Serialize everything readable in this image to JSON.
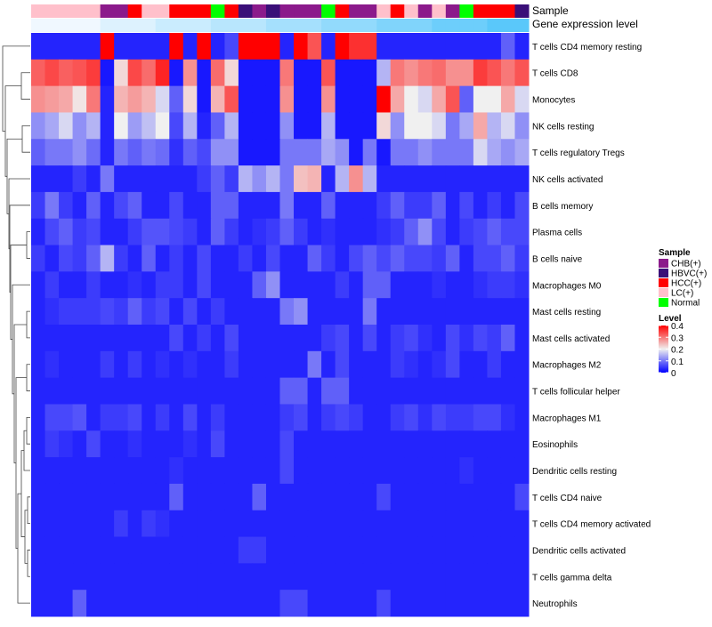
{
  "chart_data": {
    "type": "heatmap",
    "annotation_titles": {
      "sample": "Sample",
      "gene_level": "Gene expression level"
    },
    "rows": [
      "T cells CD4 memory resting",
      "T cells CD8",
      "Monocytes",
      "NK cells resting",
      "T cells regulatory  Tregs",
      "NK cells activated",
      "B cells memory",
      "Plasma cells",
      "B cells naive",
      "Macrophages M0",
      "Mast cells resting",
      "Mast cells activated",
      "Macrophages M2",
      "T cells follicular helper",
      "Macrophages M1",
      "Eosinophils",
      "Dendritic cells resting",
      "T cells CD4 naive",
      "T cells CD4 memory activated",
      "Dendritic cells activated",
      "T cells gamma delta",
      "Neutrophils"
    ],
    "sample_groups": [
      "LC(+)",
      "LC(+)",
      "LC(+)",
      "LC(+)",
      "LC(+)",
      "CHB(+)",
      "CHB(+)",
      "HCC(+)",
      "LC(+)",
      "LC(+)",
      "HCC(+)",
      "HCC(+)",
      "HCC(+)",
      "Normal",
      "HCC(+)",
      "HBVC(+)",
      "CHB(+)",
      "HBVC(+)",
      "CHB(+)",
      "CHB(+)",
      "CHB(+)",
      "Normal",
      "HCC(+)",
      "CHB(+)",
      "CHB(+)",
      "LC(+)",
      "HCC(+)",
      "LC(+)",
      "CHB(+)",
      "LC(+)",
      "CHB(+)",
      "Normal",
      "HCC(+)",
      "HCC(+)",
      "HCC(+)",
      "HBVC(+)"
    ],
    "gene_level": [
      0.32,
      0.32,
      0.32,
      0.32,
      0.32,
      0.33,
      0.33,
      0.33,
      0.33,
      0.34,
      0.34,
      0.34,
      0.34,
      0.35,
      0.35,
      0.35,
      0.35,
      0.36,
      0.36,
      0.36,
      0.36,
      0.37,
      0.37,
      0.37,
      0.37,
      0.38,
      0.38,
      0.38,
      0.38,
      0.39,
      0.39,
      0.39,
      0.39,
      0.4,
      0.4,
      0.4
    ],
    "values": [
      [
        0.03,
        0.03,
        0.03,
        0.03,
        0.03,
        0.4,
        0.03,
        0.03,
        0.03,
        0.03,
        0.4,
        0.03,
        0.4,
        0.03,
        0.06,
        0.4,
        0.4,
        0.4,
        0.03,
        0.4,
        0.33,
        0.03,
        0.4,
        0.36,
        0.36,
        0.03,
        0.03,
        0.03,
        0.03,
        0.03,
        0.03,
        0.03,
        0.03,
        0.03,
        0.08,
        0.03
      ],
      [
        0.32,
        0.34,
        0.32,
        0.33,
        0.35,
        0.02,
        0.22,
        0.34,
        0.31,
        0.37,
        0.02,
        0.28,
        0.02,
        0.31,
        0.22,
        0.02,
        0.02,
        0.02,
        0.3,
        0.02,
        0.02,
        0.33,
        0.02,
        0.02,
        0.02,
        0.15,
        0.3,
        0.28,
        0.3,
        0.31,
        0.28,
        0.28,
        0.35,
        0.33,
        0.3,
        0.33
      ],
      [
        0.28,
        0.27,
        0.26,
        0.21,
        0.3,
        0.03,
        0.25,
        0.27,
        0.25,
        0.18,
        0.08,
        0.22,
        0.02,
        0.25,
        0.33,
        0.02,
        0.02,
        0.02,
        0.28,
        0.02,
        0.02,
        0.28,
        0.02,
        0.02,
        0.02,
        0.4,
        0.26,
        0.2,
        0.18,
        0.26,
        0.33,
        0.08,
        0.2,
        0.2,
        0.26,
        0.18
      ],
      [
        0.12,
        0.14,
        0.18,
        0.12,
        0.15,
        0.03,
        0.2,
        0.13,
        0.16,
        0.2,
        0.06,
        0.15,
        0.03,
        0.08,
        0.15,
        0.02,
        0.02,
        0.02,
        0.12,
        0.02,
        0.02,
        0.15,
        0.02,
        0.02,
        0.02,
        0.22,
        0.12,
        0.2,
        0.2,
        0.18,
        0.1,
        0.14,
        0.26,
        0.15,
        0.18,
        0.12
      ],
      [
        0.08,
        0.1,
        0.1,
        0.12,
        0.09,
        0.03,
        0.1,
        0.08,
        0.1,
        0.09,
        0.04,
        0.08,
        0.06,
        0.12,
        0.12,
        0.02,
        0.02,
        0.02,
        0.1,
        0.1,
        0.1,
        0.14,
        0.12,
        0.02,
        0.1,
        0.02,
        0.1,
        0.1,
        0.12,
        0.1,
        0.1,
        0.1,
        0.18,
        0.14,
        0.12,
        0.14
      ],
      [
        0.03,
        0.03,
        0.03,
        0.05,
        0.03,
        0.1,
        0.03,
        0.03,
        0.03,
        0.03,
        0.03,
        0.03,
        0.05,
        0.08,
        0.05,
        0.15,
        0.12,
        0.15,
        0.1,
        0.24,
        0.25,
        0.03,
        0.15,
        0.28,
        0.15,
        0.03,
        0.03,
        0.03,
        0.03,
        0.03,
        0.03,
        0.03,
        0.03,
        0.03,
        0.03,
        0.03
      ],
      [
        0.05,
        0.1,
        0.05,
        0.03,
        0.08,
        0.03,
        0.06,
        0.08,
        0.03,
        0.03,
        0.06,
        0.03,
        0.03,
        0.08,
        0.08,
        0.03,
        0.03,
        0.03,
        0.1,
        0.03,
        0.03,
        0.08,
        0.03,
        0.03,
        0.03,
        0.05,
        0.08,
        0.05,
        0.05,
        0.08,
        0.03,
        0.06,
        0.03,
        0.05,
        0.03,
        0.06
      ],
      [
        0.03,
        0.06,
        0.08,
        0.05,
        0.06,
        0.03,
        0.03,
        0.05,
        0.07,
        0.07,
        0.06,
        0.05,
        0.03,
        0.08,
        0.05,
        0.03,
        0.04,
        0.05,
        0.08,
        0.05,
        0.03,
        0.04,
        0.03,
        0.03,
        0.03,
        0.04,
        0.05,
        0.08,
        0.12,
        0.06,
        0.03,
        0.05,
        0.06,
        0.08,
        0.06,
        0.06
      ],
      [
        0.05,
        0.03,
        0.06,
        0.05,
        0.08,
        0.15,
        0.05,
        0.03,
        0.08,
        0.03,
        0.05,
        0.03,
        0.06,
        0.03,
        0.03,
        0.05,
        0.03,
        0.06,
        0.03,
        0.03,
        0.08,
        0.05,
        0.03,
        0.06,
        0.08,
        0.06,
        0.08,
        0.06,
        0.06,
        0.05,
        0.08,
        0.03,
        0.06,
        0.06,
        0.08,
        0.05
      ],
      [
        0.03,
        0.05,
        0.03,
        0.03,
        0.05,
        0.03,
        0.03,
        0.04,
        0.03,
        0.05,
        0.05,
        0.03,
        0.06,
        0.03,
        0.03,
        0.03,
        0.08,
        0.12,
        0.03,
        0.03,
        0.03,
        0.03,
        0.05,
        0.03,
        0.08,
        0.08,
        0.03,
        0.03,
        0.03,
        0.04,
        0.03,
        0.03,
        0.04,
        0.05,
        0.05,
        0.04
      ],
      [
        0.03,
        0.04,
        0.05,
        0.05,
        0.05,
        0.06,
        0.05,
        0.08,
        0.05,
        0.06,
        0.03,
        0.06,
        0.03,
        0.05,
        0.03,
        0.03,
        0.03,
        0.03,
        0.1,
        0.12,
        0.03,
        0.03,
        0.03,
        0.03,
        0.1,
        0.03,
        0.03,
        0.03,
        0.03,
        0.03,
        0.03,
        0.03,
        0.03,
        0.03,
        0.03,
        0.03
      ],
      [
        0.03,
        0.03,
        0.03,
        0.03,
        0.03,
        0.03,
        0.03,
        0.03,
        0.03,
        0.03,
        0.06,
        0.03,
        0.05,
        0.03,
        0.06,
        0.03,
        0.03,
        0.03,
        0.03,
        0.03,
        0.03,
        0.05,
        0.06,
        0.03,
        0.06,
        0.03,
        0.05,
        0.06,
        0.04,
        0.03,
        0.06,
        0.04,
        0.06,
        0.05,
        0.08,
        0.03
      ],
      [
        0.03,
        0.04,
        0.03,
        0.03,
        0.03,
        0.05,
        0.03,
        0.05,
        0.03,
        0.04,
        0.03,
        0.04,
        0.03,
        0.03,
        0.05,
        0.03,
        0.03,
        0.03,
        0.03,
        0.03,
        0.1,
        0.03,
        0.06,
        0.03,
        0.03,
        0.03,
        0.05,
        0.04,
        0.03,
        0.04,
        0.06,
        0.03,
        0.03,
        0.05,
        0.03,
        0.03
      ],
      [
        0.03,
        0.03,
        0.03,
        0.03,
        0.03,
        0.03,
        0.03,
        0.03,
        0.03,
        0.03,
        0.03,
        0.03,
        0.03,
        0.03,
        0.03,
        0.03,
        0.03,
        0.03,
        0.08,
        0.08,
        0.03,
        0.08,
        0.08,
        0.03,
        0.03,
        0.03,
        0.03,
        0.03,
        0.03,
        0.03,
        0.03,
        0.03,
        0.03,
        0.03,
        0.03,
        0.03
      ],
      [
        0.03,
        0.06,
        0.06,
        0.07,
        0.03,
        0.05,
        0.05,
        0.06,
        0.03,
        0.05,
        0.03,
        0.06,
        0.03,
        0.05,
        0.03,
        0.03,
        0.03,
        0.03,
        0.05,
        0.06,
        0.03,
        0.05,
        0.06,
        0.05,
        0.03,
        0.03,
        0.05,
        0.06,
        0.04,
        0.06,
        0.05,
        0.05,
        0.06,
        0.06,
        0.04,
        0.03
      ],
      [
        0.03,
        0.05,
        0.04,
        0.03,
        0.06,
        0.03,
        0.03,
        0.04,
        0.03,
        0.03,
        0.03,
        0.04,
        0.03,
        0.06,
        0.03,
        0.03,
        0.03,
        0.03,
        0.06,
        0.03,
        0.03,
        0.03,
        0.03,
        0.03,
        0.03,
        0.03,
        0.03,
        0.03,
        0.03,
        0.03,
        0.03,
        0.03,
        0.03,
        0.03,
        0.03,
        0.03
      ],
      [
        0.03,
        0.03,
        0.03,
        0.03,
        0.03,
        0.03,
        0.03,
        0.03,
        0.03,
        0.03,
        0.04,
        0.03,
        0.03,
        0.03,
        0.03,
        0.03,
        0.03,
        0.03,
        0.06,
        0.03,
        0.03,
        0.03,
        0.03,
        0.03,
        0.03,
        0.03,
        0.03,
        0.03,
        0.03,
        0.03,
        0.03,
        0.04,
        0.03,
        0.03,
        0.03,
        0.03
      ],
      [
        0.03,
        0.03,
        0.03,
        0.03,
        0.03,
        0.03,
        0.03,
        0.03,
        0.03,
        0.03,
        0.08,
        0.03,
        0.03,
        0.03,
        0.03,
        0.03,
        0.08,
        0.03,
        0.03,
        0.03,
        0.03,
        0.03,
        0.03,
        0.03,
        0.03,
        0.06,
        0.03,
        0.03,
        0.03,
        0.03,
        0.03,
        0.03,
        0.03,
        0.03,
        0.03,
        0.06
      ],
      [
        0.03,
        0.03,
        0.03,
        0.03,
        0.03,
        0.03,
        0.05,
        0.03,
        0.05,
        0.04,
        0.03,
        0.03,
        0.03,
        0.03,
        0.03,
        0.03,
        0.03,
        0.03,
        0.03,
        0.03,
        0.03,
        0.03,
        0.03,
        0.03,
        0.03,
        0.03,
        0.03,
        0.03,
        0.03,
        0.03,
        0.03,
        0.03,
        0.03,
        0.03,
        0.03,
        0.03
      ],
      [
        0.03,
        0.03,
        0.03,
        0.03,
        0.03,
        0.03,
        0.03,
        0.03,
        0.03,
        0.03,
        0.03,
        0.03,
        0.03,
        0.03,
        0.03,
        0.05,
        0.05,
        0.03,
        0.03,
        0.03,
        0.03,
        0.03,
        0.03,
        0.03,
        0.03,
        0.03,
        0.03,
        0.03,
        0.03,
        0.03,
        0.03,
        0.03,
        0.03,
        0.03,
        0.03,
        0.03
      ],
      [
        0.03,
        0.03,
        0.03,
        0.03,
        0.03,
        0.03,
        0.03,
        0.03,
        0.03,
        0.03,
        0.03,
        0.03,
        0.03,
        0.03,
        0.03,
        0.03,
        0.03,
        0.03,
        0.03,
        0.03,
        0.03,
        0.03,
        0.03,
        0.03,
        0.03,
        0.03,
        0.03,
        0.03,
        0.03,
        0.03,
        0.03,
        0.03,
        0.03,
        0.03,
        0.03,
        0.03
      ],
      [
        0.03,
        0.03,
        0.03,
        0.08,
        0.03,
        0.03,
        0.03,
        0.03,
        0.03,
        0.03,
        0.03,
        0.03,
        0.03,
        0.03,
        0.03,
        0.03,
        0.03,
        0.03,
        0.06,
        0.06,
        0.03,
        0.03,
        0.03,
        0.03,
        0.03,
        0.06,
        0.03,
        0.03,
        0.03,
        0.03,
        0.03,
        0.03,
        0.03,
        0.03,
        0.03,
        0.03
      ]
    ],
    "sample_legend": {
      "title": "Sample",
      "entries": [
        {
          "label": "CHB(+)",
          "color": "#8B1A8B"
        },
        {
          "label": "HBVC(+)",
          "color": "#3A0F78"
        },
        {
          "label": "HCC(+)",
          "color": "#FF0000"
        },
        {
          "label": "LC(+)",
          "color": "#FFC0CB"
        },
        {
          "label": "Normal",
          "color": "#00FF00"
        }
      ]
    },
    "level_legend": {
      "title": "Level",
      "ticks": [
        "0.4",
        "0.3",
        "0.2",
        "0.1",
        "0"
      ],
      "tick_values": [
        0.4,
        0.3,
        0.2,
        0.1,
        0
      ],
      "min": 0,
      "max": 0.4
    },
    "colors": {
      "low": "#0000FF",
      "mid": "#F0F0F0",
      "high": "#FF0000",
      "gene_bar_low": "#F0F8FF",
      "gene_bar_high": "#5AC8FA"
    }
  }
}
